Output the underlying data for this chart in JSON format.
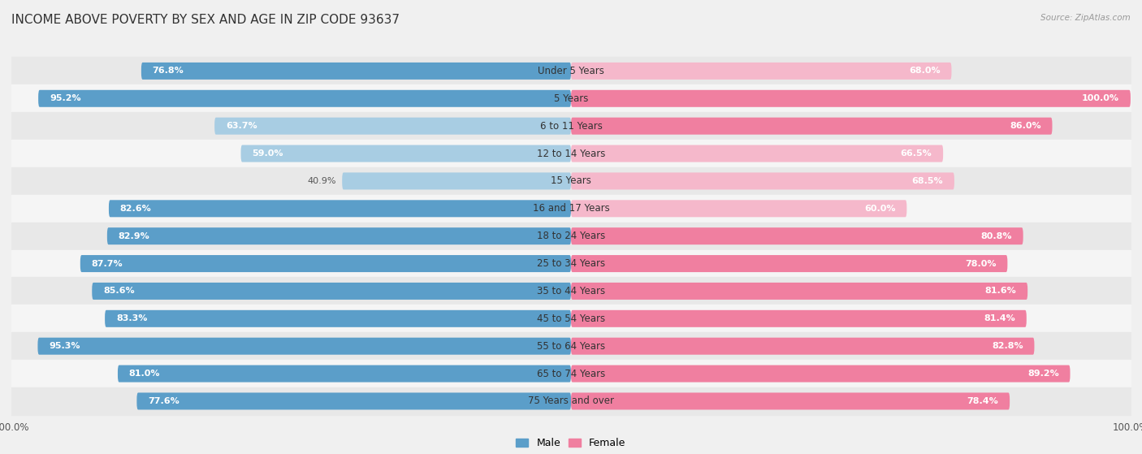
{
  "title": "INCOME ABOVE POVERTY BY SEX AND AGE IN ZIP CODE 93637",
  "source": "Source: ZipAtlas.com",
  "categories": [
    "Under 5 Years",
    "5 Years",
    "6 to 11 Years",
    "12 to 14 Years",
    "15 Years",
    "16 and 17 Years",
    "18 to 24 Years",
    "25 to 34 Years",
    "35 to 44 Years",
    "45 to 54 Years",
    "55 to 64 Years",
    "65 to 74 Years",
    "75 Years and over"
  ],
  "male": [
    76.8,
    95.2,
    63.7,
    59.0,
    40.9,
    82.6,
    82.9,
    87.7,
    85.6,
    83.3,
    95.3,
    81.0,
    77.6
  ],
  "female": [
    68.0,
    100.0,
    86.0,
    66.5,
    68.5,
    60.0,
    80.8,
    78.0,
    81.6,
    81.4,
    82.8,
    89.2,
    78.4
  ],
  "male_color_dark": "#5b9ec9",
  "male_color_light": "#a8cde3",
  "female_color_dark": "#f07fa0",
  "female_color_light": "#f5b8cb",
  "bar_height": 0.62,
  "background_color": "#f0f0f0",
  "row_color_dark": "#e8e8e8",
  "row_color_light": "#f5f5f5",
  "title_fontsize": 11,
  "label_fontsize": 8.5,
  "value_fontsize": 8,
  "axis_max": 100.0,
  "male_threshold": 75.0,
  "female_threshold": 75.0
}
